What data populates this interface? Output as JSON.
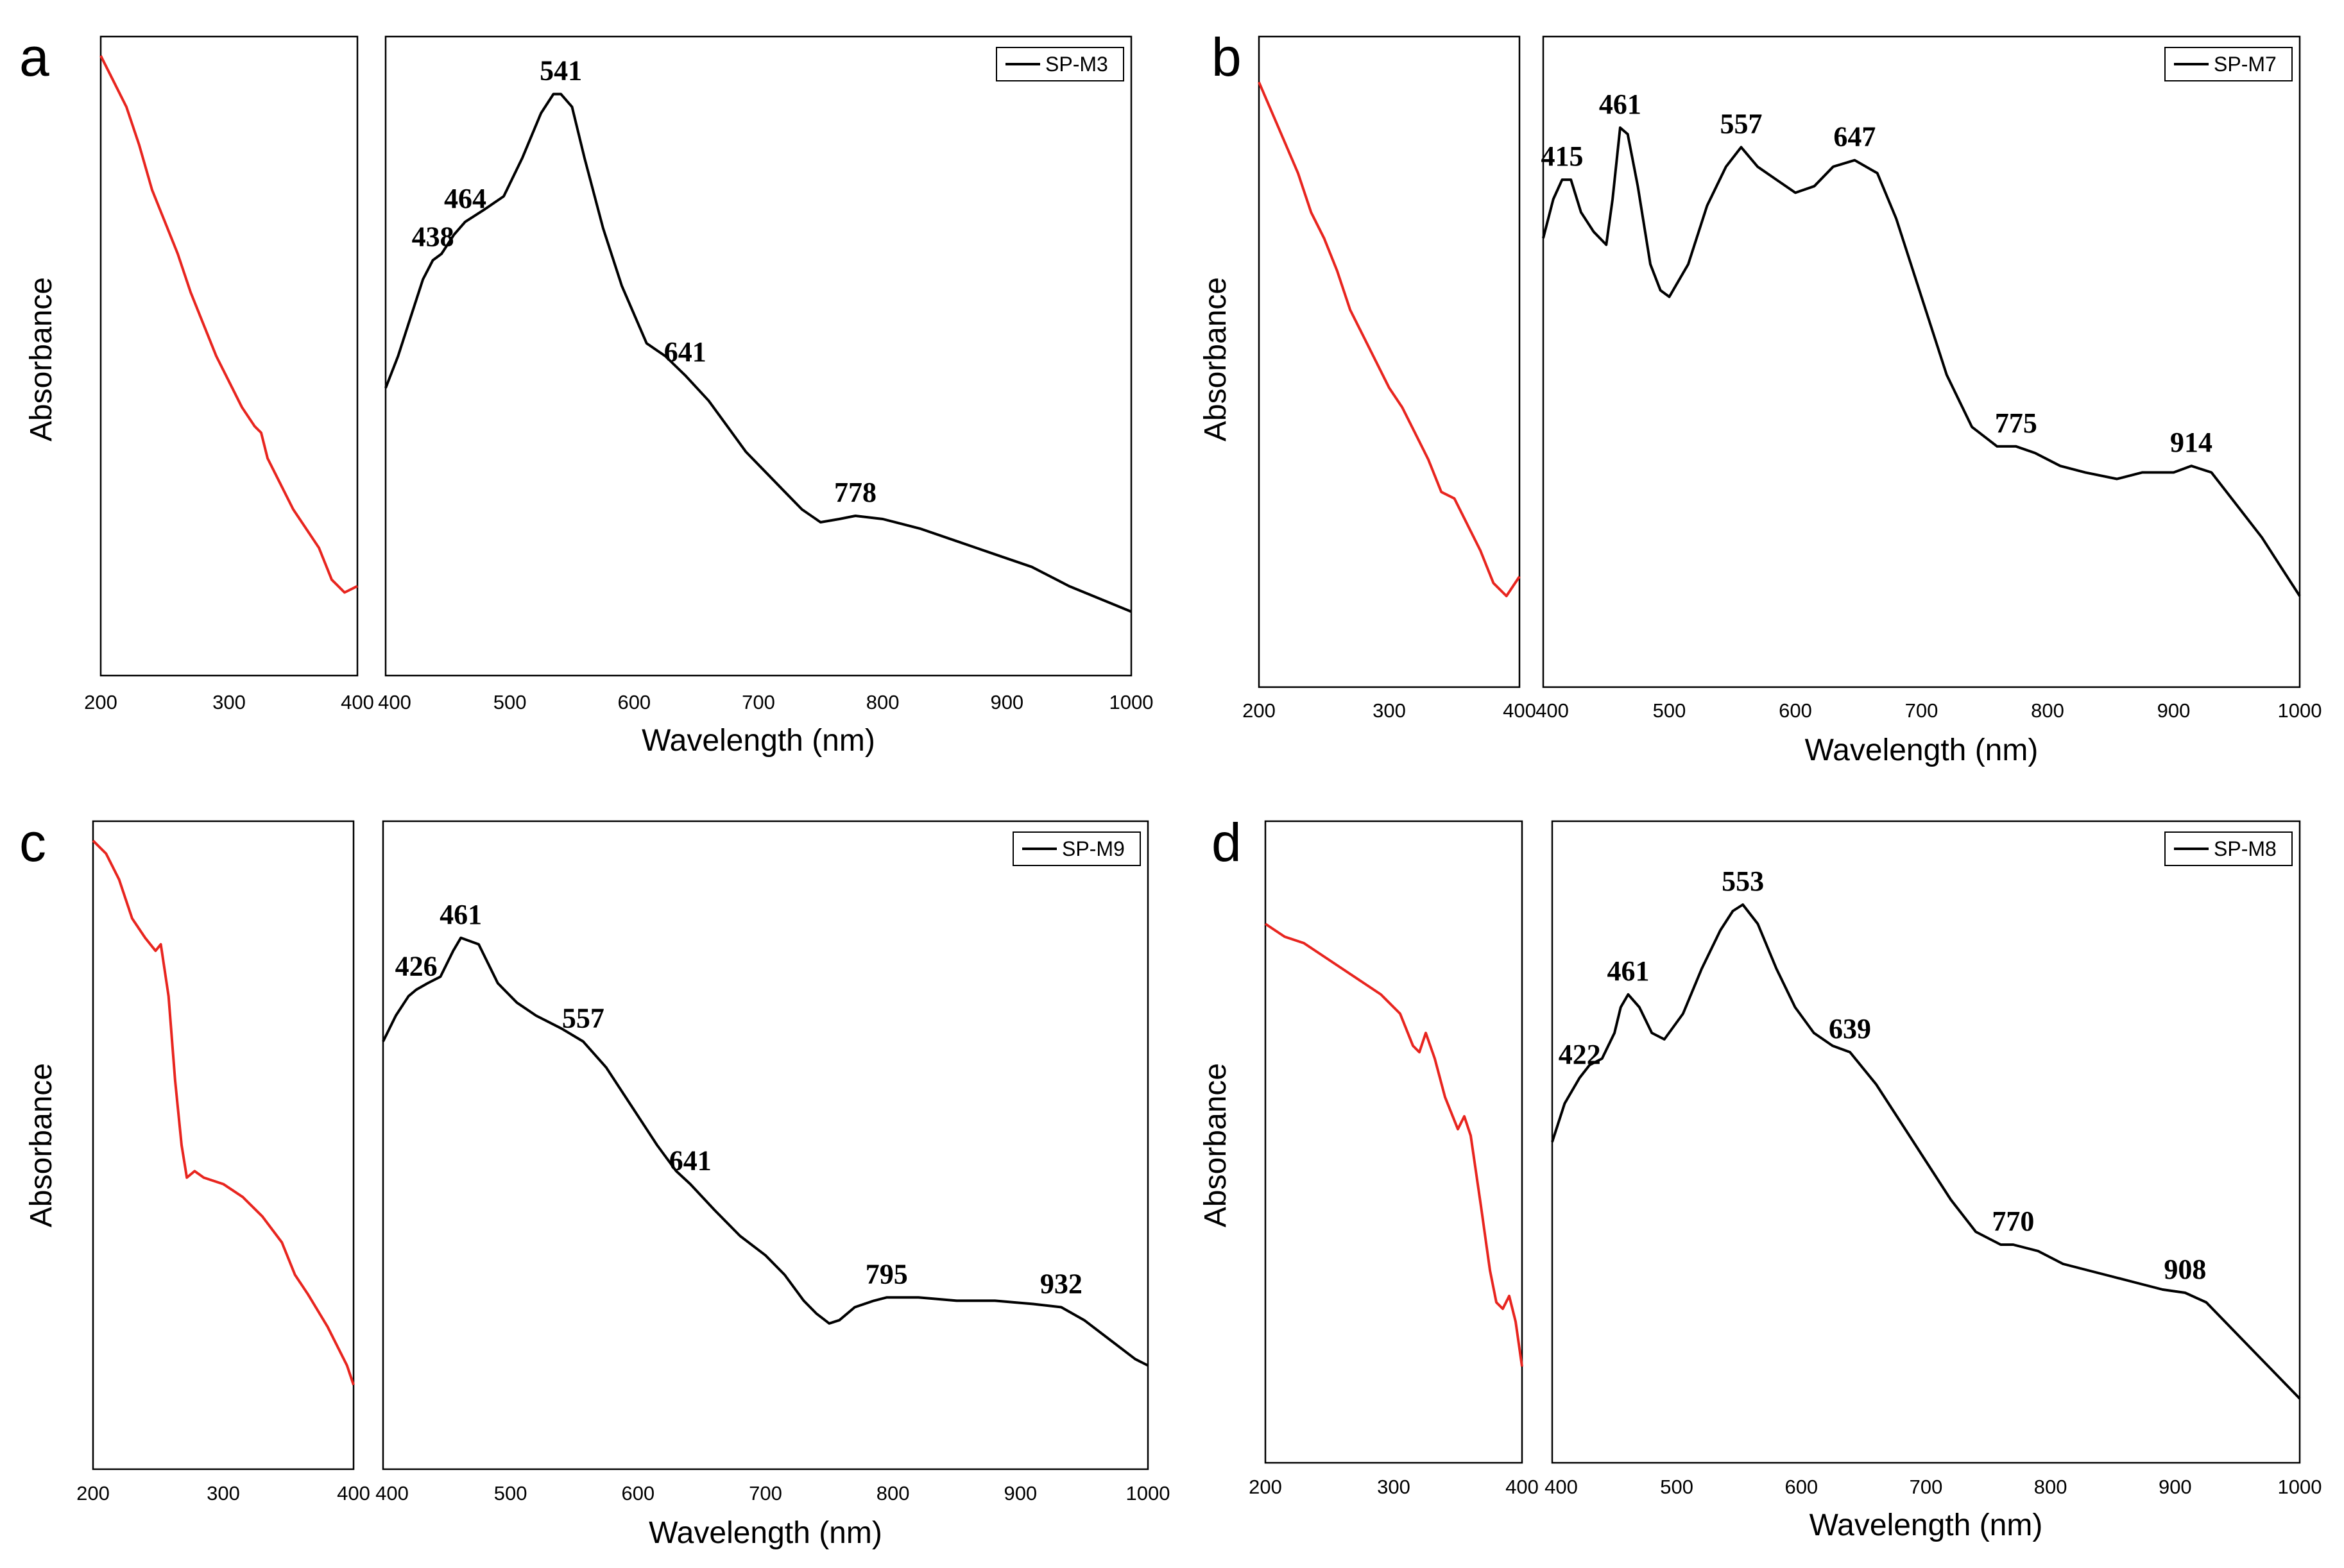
{
  "figure": {
    "y_axis_label": "Absorbance",
    "x_axis_label": "Wavelength (nm)"
  },
  "colors": {
    "uv_curve": "#e8251f",
    "vis_curve": "#000000",
    "frame": "#000000"
  },
  "chart_data": [
    {
      "panel": "a",
      "type": "line",
      "legend": "SP-M3",
      "legend_position": "top-right",
      "uv": {
        "xlim": [
          200,
          400
        ],
        "ylim": [
          0,
          1
        ],
        "ticks": [
          "200",
          "300",
          "400"
        ],
        "points": [
          [
            200,
            0.97
          ],
          [
            210,
            0.93
          ],
          [
            220,
            0.89
          ],
          [
            230,
            0.83
          ],
          [
            240,
            0.76
          ],
          [
            250,
            0.71
          ],
          [
            260,
            0.66
          ],
          [
            270,
            0.6
          ],
          [
            280,
            0.55
          ],
          [
            290,
            0.5
          ],
          [
            300,
            0.46
          ],
          [
            310,
            0.42
          ],
          [
            320,
            0.39
          ],
          [
            325,
            0.38
          ],
          [
            330,
            0.34
          ],
          [
            340,
            0.3
          ],
          [
            350,
            0.26
          ],
          [
            360,
            0.23
          ],
          [
            370,
            0.2
          ],
          [
            380,
            0.15
          ],
          [
            390,
            0.13
          ],
          [
            400,
            0.14
          ]
        ]
      },
      "vis": {
        "xlim": [
          400,
          1000
        ],
        "ylim": [
          0,
          1
        ],
        "ticks": [
          "400",
          "500",
          "600",
          "700",
          "800",
          "900",
          "1000"
        ],
        "points": [
          [
            400,
            0.45
          ],
          [
            410,
            0.5
          ],
          [
            420,
            0.56
          ],
          [
            430,
            0.62
          ],
          [
            438,
            0.65
          ],
          [
            445,
            0.66
          ],
          [
            455,
            0.69
          ],
          [
            464,
            0.71
          ],
          [
            480,
            0.73
          ],
          [
            495,
            0.75
          ],
          [
            510,
            0.81
          ],
          [
            525,
            0.88
          ],
          [
            535,
            0.91
          ],
          [
            541,
            0.91
          ],
          [
            550,
            0.89
          ],
          [
            560,
            0.81
          ],
          [
            575,
            0.7
          ],
          [
            590,
            0.61
          ],
          [
            610,
            0.52
          ],
          [
            625,
            0.5
          ],
          [
            641,
            0.47
          ],
          [
            660,
            0.43
          ],
          [
            675,
            0.39
          ],
          [
            690,
            0.35
          ],
          [
            705,
            0.32
          ],
          [
            720,
            0.29
          ],
          [
            735,
            0.26
          ],
          [
            750,
            0.24
          ],
          [
            765,
            0.245
          ],
          [
            778,
            0.25
          ],
          [
            800,
            0.245
          ],
          [
            830,
            0.23
          ],
          [
            860,
            0.21
          ],
          [
            890,
            0.19
          ],
          [
            920,
            0.17
          ],
          [
            950,
            0.14
          ],
          [
            975,
            0.12
          ],
          [
            1000,
            0.1
          ]
        ]
      },
      "peaks": [
        {
          "label": "438",
          "x": 438,
          "y": 0.65
        },
        {
          "label": "464",
          "x": 464,
          "y": 0.71
        },
        {
          "label": "541",
          "x": 541,
          "y": 0.91
        },
        {
          "label": "641",
          "x": 641,
          "y": 0.47
        },
        {
          "label": "778",
          "x": 778,
          "y": 0.25
        }
      ]
    },
    {
      "panel": "b",
      "type": "line",
      "legend": "SP-M7",
      "legend_position": "top-right",
      "uv": {
        "xlim": [
          200,
          400
        ],
        "ylim": [
          0,
          1
        ],
        "ticks": [
          "200",
          "300",
          "400"
        ],
        "points": [
          [
            200,
            0.93
          ],
          [
            215,
            0.86
          ],
          [
            230,
            0.79
          ],
          [
            240,
            0.73
          ],
          [
            250,
            0.69
          ],
          [
            260,
            0.64
          ],
          [
            270,
            0.58
          ],
          [
            280,
            0.54
          ],
          [
            290,
            0.5
          ],
          [
            300,
            0.46
          ],
          [
            310,
            0.43
          ],
          [
            320,
            0.39
          ],
          [
            330,
            0.35
          ],
          [
            340,
            0.3
          ],
          [
            350,
            0.29
          ],
          [
            360,
            0.25
          ],
          [
            370,
            0.21
          ],
          [
            380,
            0.16
          ],
          [
            390,
            0.14
          ],
          [
            400,
            0.17
          ]
        ]
      },
      "vis": {
        "xlim": [
          400,
          1000
        ],
        "ylim": [
          0,
          1
        ],
        "ticks": [
          "400",
          "500",
          "600",
          "700",
          "800",
          "900",
          "1000"
        ],
        "points": [
          [
            400,
            0.69
          ],
          [
            408,
            0.75
          ],
          [
            415,
            0.78
          ],
          [
            422,
            0.78
          ],
          [
            430,
            0.73
          ],
          [
            440,
            0.7
          ],
          [
            450,
            0.68
          ],
          [
            455,
            0.75
          ],
          [
            461,
            0.86
          ],
          [
            467,
            0.85
          ],
          [
            475,
            0.77
          ],
          [
            485,
            0.65
          ],
          [
            493,
            0.61
          ],
          [
            500,
            0.6
          ],
          [
            515,
            0.65
          ],
          [
            530,
            0.74
          ],
          [
            545,
            0.8
          ],
          [
            557,
            0.83
          ],
          [
            570,
            0.8
          ],
          [
            585,
            0.78
          ],
          [
            600,
            0.76
          ],
          [
            615,
            0.77
          ],
          [
            630,
            0.8
          ],
          [
            647,
            0.81
          ],
          [
            665,
            0.79
          ],
          [
            680,
            0.72
          ],
          [
            700,
            0.6
          ],
          [
            720,
            0.48
          ],
          [
            740,
            0.4
          ],
          [
            760,
            0.37
          ],
          [
            775,
            0.37
          ],
          [
            790,
            0.36
          ],
          [
            810,
            0.34
          ],
          [
            830,
            0.33
          ],
          [
            855,
            0.32
          ],
          [
            875,
            0.33
          ],
          [
            900,
            0.33
          ],
          [
            914,
            0.34
          ],
          [
            930,
            0.33
          ],
          [
            950,
            0.28
          ],
          [
            970,
            0.23
          ],
          [
            990,
            0.17
          ],
          [
            1000,
            0.14
          ]
        ]
      },
      "peaks": [
        {
          "label": "415",
          "x": 415,
          "y": 0.78
        },
        {
          "label": "461",
          "x": 461,
          "y": 0.86
        },
        {
          "label": "557",
          "x": 557,
          "y": 0.83
        },
        {
          "label": "647",
          "x": 647,
          "y": 0.81
        },
        {
          "label": "775",
          "x": 775,
          "y": 0.37
        },
        {
          "label": "914",
          "x": 914,
          "y": 0.34
        }
      ]
    },
    {
      "panel": "c",
      "type": "line",
      "legend": "SP-M9",
      "legend_position": "top-right",
      "uv": {
        "xlim": [
          200,
          400
        ],
        "ylim": [
          0,
          1
        ],
        "ticks": [
          "200",
          "300",
          "400"
        ],
        "points": [
          [
            200,
            0.97
          ],
          [
            210,
            0.95
          ],
          [
            220,
            0.91
          ],
          [
            230,
            0.85
          ],
          [
            240,
            0.82
          ],
          [
            248,
            0.8
          ],
          [
            252,
            0.81
          ],
          [
            258,
            0.73
          ],
          [
            263,
            0.6
          ],
          [
            268,
            0.5
          ],
          [
            272,
            0.45
          ],
          [
            278,
            0.46
          ],
          [
            285,
            0.45
          ],
          [
            300,
            0.44
          ],
          [
            315,
            0.42
          ],
          [
            330,
            0.39
          ],
          [
            345,
            0.35
          ],
          [
            355,
            0.3
          ],
          [
            365,
            0.27
          ],
          [
            380,
            0.22
          ],
          [
            395,
            0.16
          ],
          [
            400,
            0.13
          ]
        ]
      },
      "vis": {
        "xlim": [
          400,
          1000
        ],
        "ylim": [
          0,
          1
        ],
        "ticks": [
          "400",
          "500",
          "600",
          "700",
          "800",
          "900",
          "1000"
        ],
        "points": [
          [
            400,
            0.66
          ],
          [
            410,
            0.7
          ],
          [
            420,
            0.73
          ],
          [
            426,
            0.74
          ],
          [
            435,
            0.75
          ],
          [
            445,
            0.76
          ],
          [
            455,
            0.8
          ],
          [
            461,
            0.82
          ],
          [
            475,
            0.81
          ],
          [
            490,
            0.75
          ],
          [
            505,
            0.72
          ],
          [
            520,
            0.7
          ],
          [
            540,
            0.68
          ],
          [
            557,
            0.66
          ],
          [
            575,
            0.62
          ],
          [
            595,
            0.56
          ],
          [
            615,
            0.5
          ],
          [
            630,
            0.46
          ],
          [
            641,
            0.44
          ],
          [
            660,
            0.4
          ],
          [
            680,
            0.36
          ],
          [
            700,
            0.33
          ],
          [
            715,
            0.3
          ],
          [
            730,
            0.26
          ],
          [
            740,
            0.24
          ],
          [
            750,
            0.225
          ],
          [
            758,
            0.23
          ],
          [
            770,
            0.25
          ],
          [
            785,
            0.26
          ],
          [
            795,
            0.265
          ],
          [
            820,
            0.265
          ],
          [
            850,
            0.26
          ],
          [
            880,
            0.26
          ],
          [
            910,
            0.255
          ],
          [
            932,
            0.25
          ],
          [
            950,
            0.23
          ],
          [
            970,
            0.2
          ],
          [
            990,
            0.17
          ],
          [
            1000,
            0.16
          ]
        ]
      },
      "peaks": [
        {
          "label": "426",
          "x": 426,
          "y": 0.74
        },
        {
          "label": "461",
          "x": 461,
          "y": 0.82
        },
        {
          "label": "557",
          "x": 557,
          "y": 0.66
        },
        {
          "label": "641",
          "x": 641,
          "y": 0.44
        },
        {
          "label": "795",
          "x": 795,
          "y": 0.265
        },
        {
          "label": "932",
          "x": 932,
          "y": 0.25
        }
      ]
    },
    {
      "panel": "d",
      "type": "line",
      "legend": "SP-M8",
      "legend_position": "top-right",
      "uv": {
        "xlim": [
          200,
          400
        ],
        "ylim": [
          0,
          1
        ],
        "ticks": [
          "200",
          "300",
          "400"
        ],
        "points": [
          [
            200,
            0.84
          ],
          [
            215,
            0.82
          ],
          [
            230,
            0.81
          ],
          [
            245,
            0.79
          ],
          [
            260,
            0.77
          ],
          [
            275,
            0.75
          ],
          [
            290,
            0.73
          ],
          [
            305,
            0.7
          ],
          [
            315,
            0.65
          ],
          [
            320,
            0.64
          ],
          [
            325,
            0.67
          ],
          [
            332,
            0.63
          ],
          [
            340,
            0.57
          ],
          [
            350,
            0.52
          ],
          [
            355,
            0.54
          ],
          [
            360,
            0.51
          ],
          [
            368,
            0.4
          ],
          [
            375,
            0.3
          ],
          [
            380,
            0.25
          ],
          [
            385,
            0.24
          ],
          [
            390,
            0.26
          ],
          [
            395,
            0.22
          ],
          [
            400,
            0.15
          ]
        ]
      },
      "vis": {
        "xlim": [
          400,
          1000
        ],
        "ylim": [
          0,
          1
        ],
        "ticks": [
          "400",
          "500",
          "600",
          "700",
          "800",
          "900",
          "1000"
        ],
        "points": [
          [
            400,
            0.5
          ],
          [
            410,
            0.56
          ],
          [
            422,
            0.6
          ],
          [
            430,
            0.62
          ],
          [
            440,
            0.63
          ],
          [
            450,
            0.67
          ],
          [
            455,
            0.71
          ],
          [
            461,
            0.73
          ],
          [
            470,
            0.71
          ],
          [
            480,
            0.67
          ],
          [
            490,
            0.66
          ],
          [
            505,
            0.7
          ],
          [
            520,
            0.77
          ],
          [
            535,
            0.83
          ],
          [
            545,
            0.86
          ],
          [
            553,
            0.87
          ],
          [
            565,
            0.84
          ],
          [
            580,
            0.77
          ],
          [
            595,
            0.71
          ],
          [
            610,
            0.67
          ],
          [
            625,
            0.65
          ],
          [
            639,
            0.64
          ],
          [
            660,
            0.59
          ],
          [
            680,
            0.53
          ],
          [
            700,
            0.47
          ],
          [
            720,
            0.41
          ],
          [
            740,
            0.36
          ],
          [
            760,
            0.34
          ],
          [
            770,
            0.34
          ],
          [
            790,
            0.33
          ],
          [
            810,
            0.31
          ],
          [
            830,
            0.3
          ],
          [
            850,
            0.29
          ],
          [
            870,
            0.28
          ],
          [
            890,
            0.27
          ],
          [
            908,
            0.265
          ],
          [
            925,
            0.25
          ],
          [
            945,
            0.21
          ],
          [
            965,
            0.17
          ],
          [
            985,
            0.13
          ],
          [
            1000,
            0.1
          ]
        ]
      },
      "peaks": [
        {
          "label": "422",
          "x": 422,
          "y": 0.6
        },
        {
          "label": "461",
          "x": 461,
          "y": 0.73
        },
        {
          "label": "553",
          "x": 553,
          "y": 0.87
        },
        {
          "label": "639",
          "x": 639,
          "y": 0.64
        },
        {
          "label": "770",
          "x": 770,
          "y": 0.34
        },
        {
          "label": "908",
          "x": 908,
          "y": 0.265
        }
      ]
    }
  ]
}
